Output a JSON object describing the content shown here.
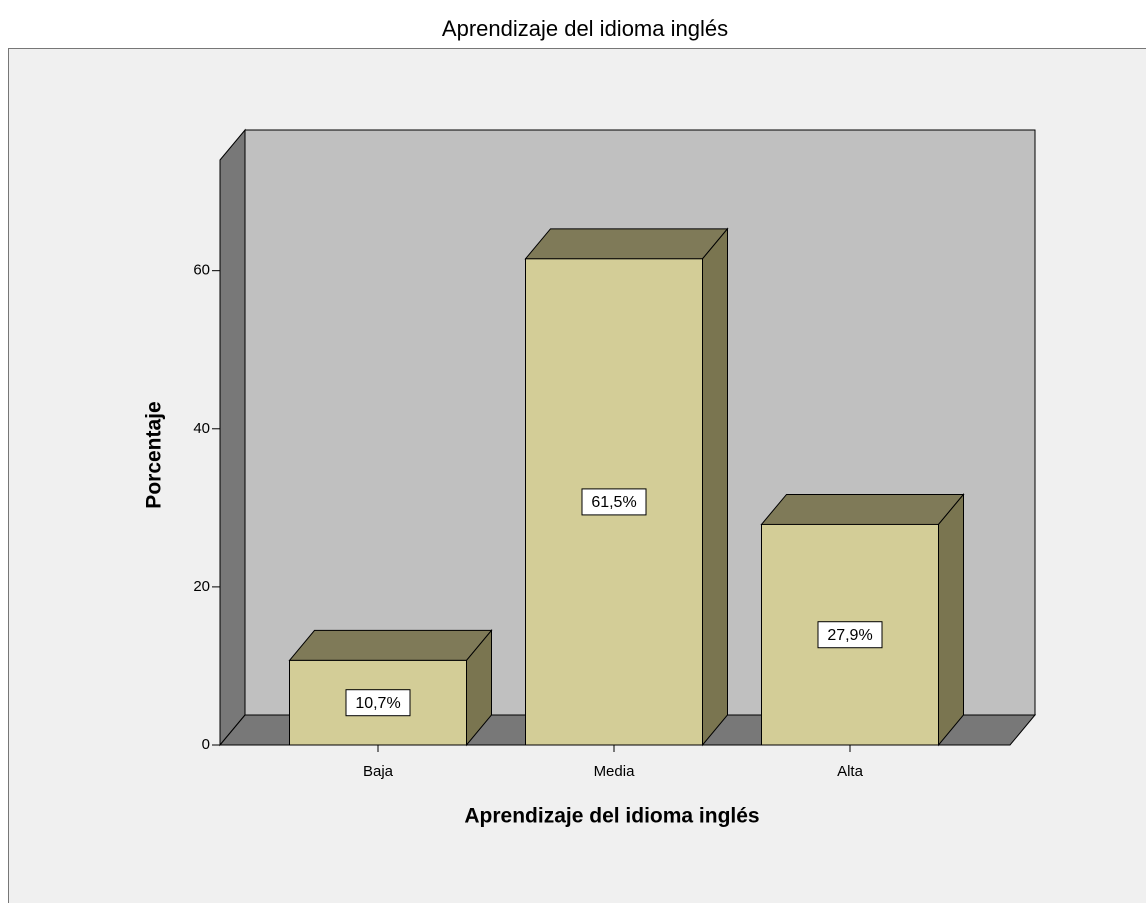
{
  "chart_data": {
    "type": "bar",
    "title": "Aprendizaje del idioma inglés",
    "x_label": "Aprendizaje del idioma inglés",
    "y_label": "Porcentaje",
    "categories": [
      "Baja",
      "Media",
      "Alta"
    ],
    "values": [
      10.7,
      61.5,
      27.9
    ],
    "value_labels": [
      "10,7%",
      "61,5%",
      "27,9%"
    ],
    "color": "#d3cd97",
    "ylim": [
      0,
      74
    ],
    "yticks": [
      0,
      20,
      40,
      60
    ]
  }
}
